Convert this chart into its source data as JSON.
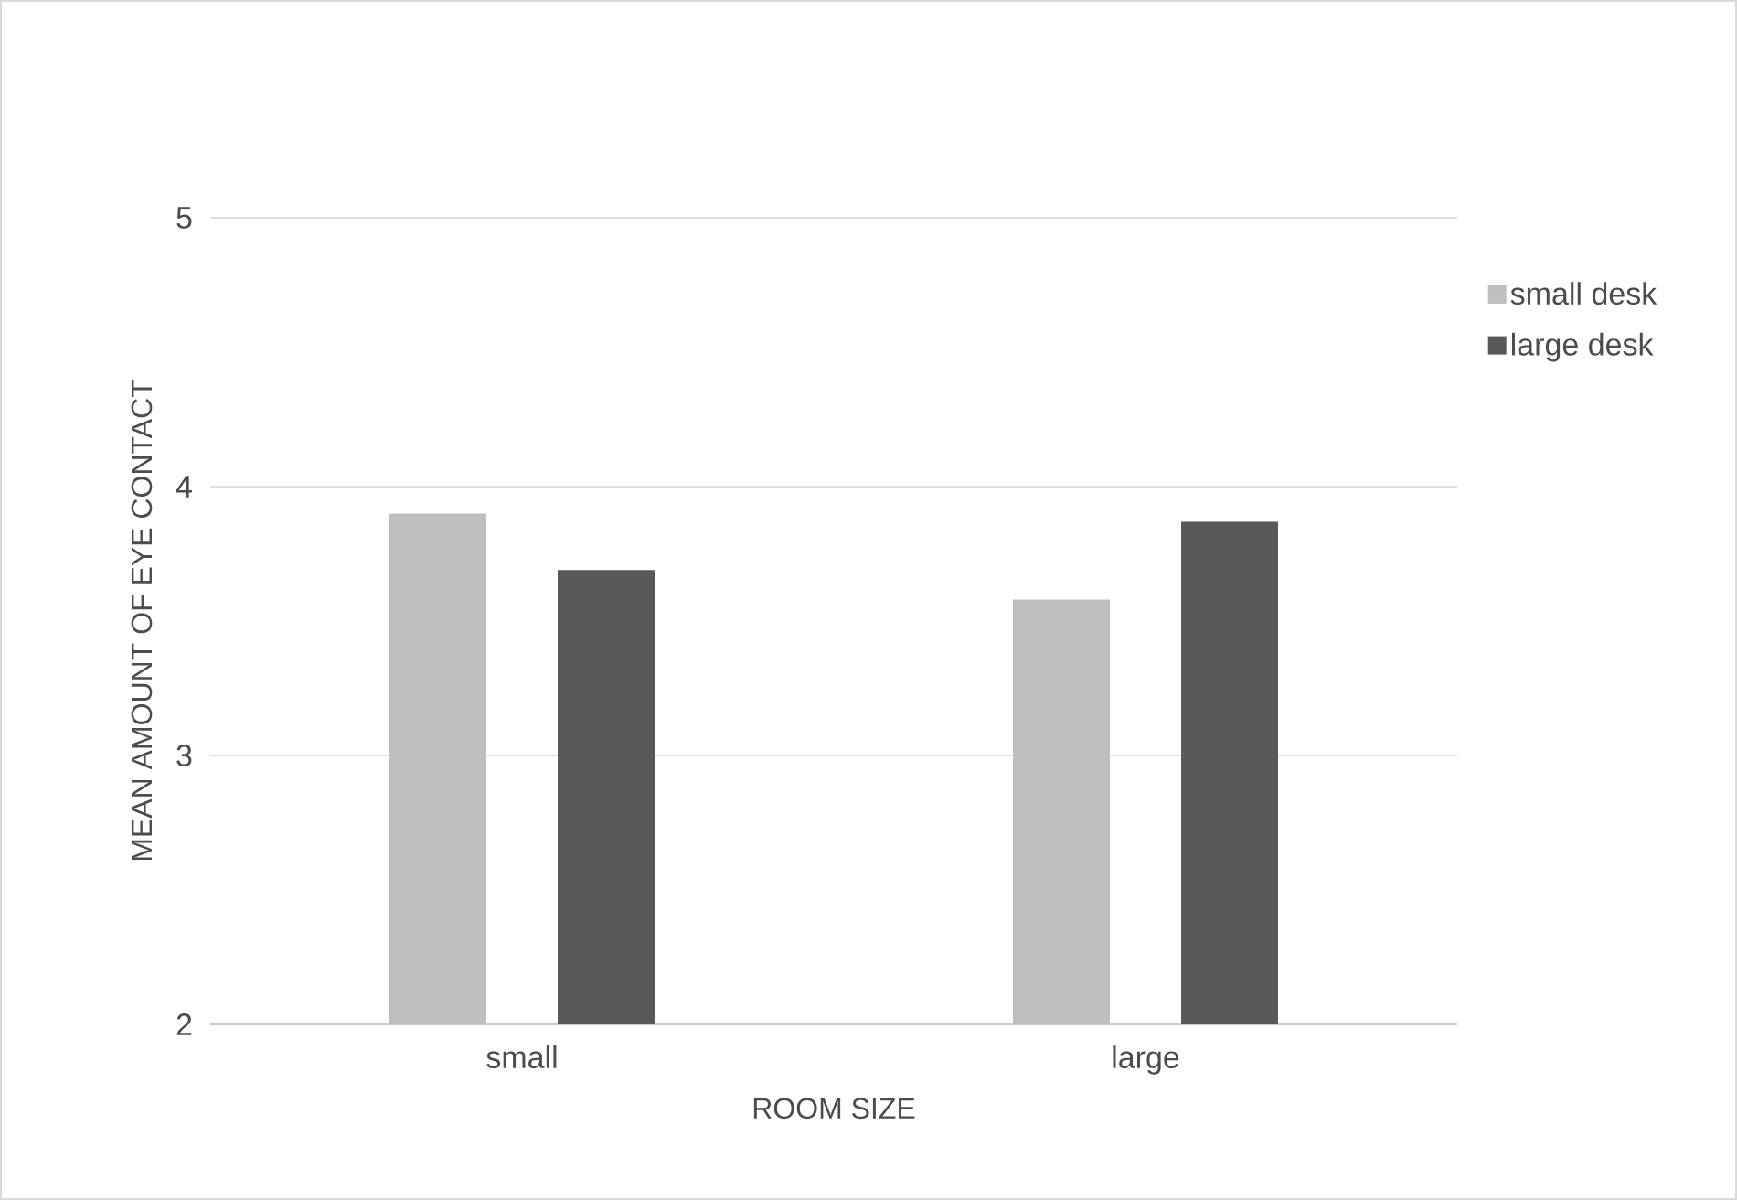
{
  "chart_data": {
    "type": "bar",
    "categories": [
      "small",
      "large"
    ],
    "series": [
      {
        "name": "small desk",
        "color": "#bfbfbf",
        "values": [
          3.9,
          3.58
        ]
      },
      {
        "name": "large desk",
        "color": "#595959",
        "values": [
          3.69,
          3.87
        ]
      }
    ],
    "xlabel": "ROOM SIZE",
    "ylabel": "MEAN AMOUNT OF EYE CONTACT",
    "ylim": [
      2,
      5
    ],
    "yticks": [
      2,
      3,
      4,
      5
    ],
    "grid": "y",
    "legend": "right"
  }
}
